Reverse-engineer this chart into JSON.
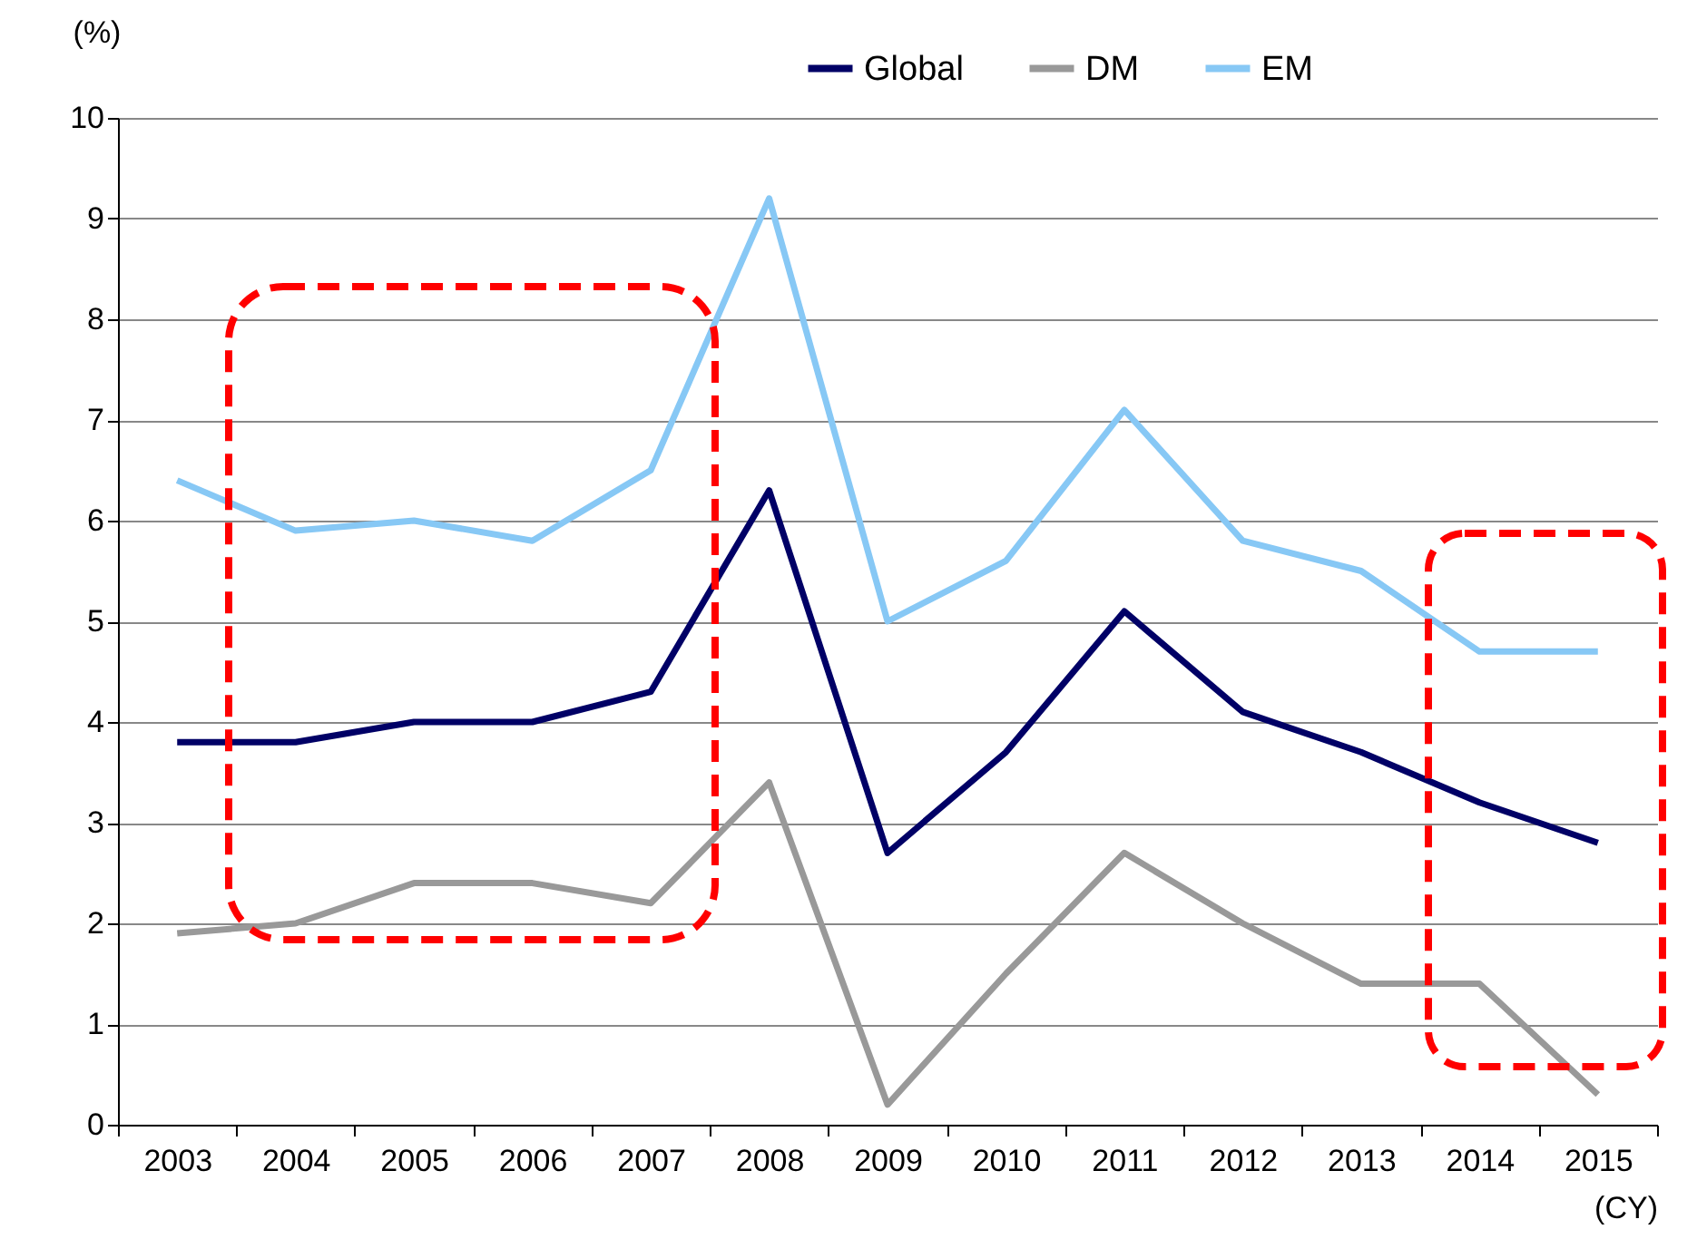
{
  "chart_data": {
    "type": "line",
    "ylabel": "(%)",
    "xlabel": "(CY)",
    "categories": [
      "2003",
      "2004",
      "2005",
      "2006",
      "2007",
      "2008",
      "2009",
      "2010",
      "2011",
      "2012",
      "2013",
      "2014",
      "2015"
    ],
    "series": [
      {
        "name": "Global",
        "color": "#000066",
        "values": [
          3.8,
          3.8,
          4.0,
          4.0,
          4.3,
          6.3,
          2.7,
          3.7,
          5.1,
          4.1,
          3.7,
          3.2,
          2.8
        ]
      },
      {
        "name": "DM",
        "color": "#999999",
        "values": [
          1.9,
          2.0,
          2.4,
          2.4,
          2.2,
          3.4,
          0.2,
          1.5,
          2.7,
          2.0,
          1.4,
          1.4,
          0.3
        ]
      },
      {
        "name": "EM",
        "color": "#87c8f5",
        "values": [
          6.4,
          5.9,
          6.0,
          5.8,
          6.5,
          9.2,
          5.0,
          5.6,
          7.1,
          5.8,
          5.5,
          4.7,
          4.7
        ]
      }
    ],
    "ylim": [
      0,
      10
    ],
    "yticks": [
      0,
      1,
      2,
      3,
      4,
      5,
      6,
      7,
      8,
      9,
      10
    ],
    "grid": "y",
    "legend": "top",
    "marker": "none",
    "line_style": "solid"
  }
}
